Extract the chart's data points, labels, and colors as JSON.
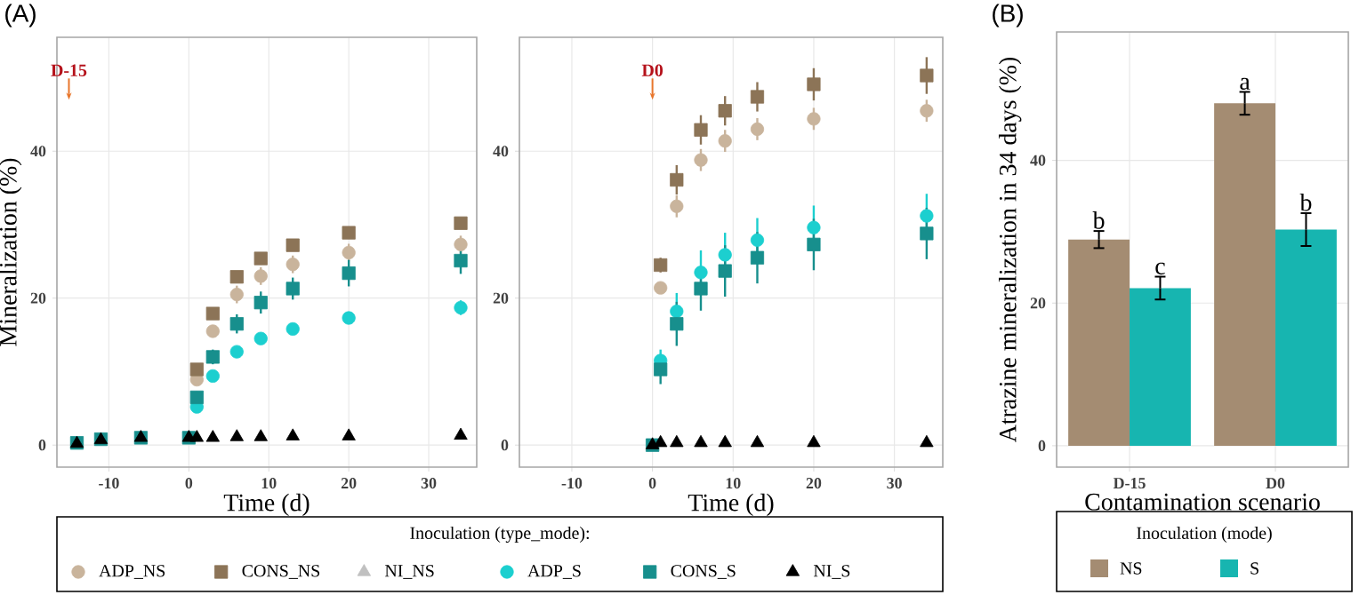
{
  "chart_data": [
    {
      "type": "scatter",
      "title": "(A)",
      "xlabel": "Time (d)",
      "ylabel": "Mineralization (%)",
      "legend_title": "Inoculation (type_mode):",
      "legend": "bottom",
      "grid": true,
      "xlim": [
        -16.5,
        36
      ],
      "xticks": [
        -10,
        0,
        10,
        20,
        30
      ],
      "ylim": [
        -3,
        55.5
      ],
      "yticks": [
        0,
        20,
        40
      ],
      "annotations": [
        {
          "text": "D-15",
          "x": -15,
          "y": 47
        }
      ],
      "series": [
        {
          "name": "ADP_NS",
          "color": "#c9b49c",
          "marker": "circle",
          "x": [
            1,
            3,
            6,
            9,
            13,
            20,
            34
          ],
          "values": [
            8.9,
            15.5,
            20.5,
            23.0,
            24.6,
            26.2,
            27.3
          ],
          "errors": [
            0.5,
            0.8,
            1.2,
            1.2,
            1.2,
            1.2,
            1.2
          ]
        },
        {
          "name": "CONS_NS",
          "color": "#8c7457",
          "marker": "square",
          "x": [
            1,
            3,
            6,
            9,
            13,
            20,
            34
          ],
          "values": [
            10.3,
            17.9,
            22.9,
            25.4,
            27.2,
            28.9,
            30.2
          ]
        },
        {
          "name": "NI_NS",
          "color": "#c0c0c0",
          "marker": "triangle"
        },
        {
          "name": "ADP_S",
          "color": "#1ccfcf",
          "marker": "circle",
          "x": [
            1,
            3,
            6,
            9,
            13,
            20,
            34
          ],
          "values": [
            5.2,
            9.4,
            12.7,
            14.5,
            15.8,
            17.3,
            18.7
          ],
          "errors": [
            null,
            null,
            null,
            null,
            null,
            null,
            1.0
          ]
        },
        {
          "name": "CONS_S",
          "color": "#178f8d",
          "marker": "square",
          "x": [
            -14,
            -11,
            -6,
            0,
            1,
            3,
            6,
            9,
            13,
            20,
            34
          ],
          "values": [
            0.3,
            0.8,
            1.0,
            1.0,
            6.5,
            12.0,
            16.5,
            19.4,
            21.3,
            23.4,
            25.1
          ],
          "errors": [
            null,
            null,
            null,
            null,
            0.8,
            1.0,
            1.3,
            1.5,
            1.5,
            1.8,
            1.8
          ]
        },
        {
          "name": "NI_S",
          "color": "#000000",
          "marker": "triangle",
          "x": [
            -14,
            -11,
            -6,
            0,
            1,
            3,
            6,
            9,
            13,
            20,
            34
          ],
          "values": [
            0.2,
            0.7,
            1.0,
            1.0,
            1.0,
            1.0,
            1.1,
            1.1,
            1.2,
            1.2,
            1.3
          ]
        }
      ]
    },
    {
      "type": "scatter",
      "xlabel": "Time (d)",
      "grid": true,
      "xlim": [
        -16.5,
        36
      ],
      "xticks": [
        -10,
        0,
        10,
        20,
        30
      ],
      "ylim": [
        -3,
        55.5
      ],
      "yticks": [
        0,
        20,
        40
      ],
      "annotations": [
        {
          "text": "D0",
          "x": 0,
          "y": 47
        }
      ],
      "series": [
        {
          "color": "#c9b49c",
          "marker": "circle",
          "x": [
            1,
            3,
            6,
            9,
            13,
            20,
            34
          ],
          "values": [
            21.4,
            32.5,
            38.8,
            41.4,
            43.0,
            44.4,
            45.5
          ],
          "errors": [
            null,
            1.5,
            1.5,
            1.5,
            1.5,
            1.5,
            1.5
          ]
        },
        {
          "color": "#8c7457",
          "marker": "square",
          "x": [
            1,
            3,
            6,
            9,
            13,
            20,
            34
          ],
          "values": [
            24.5,
            36.1,
            42.9,
            45.5,
            47.4,
            49.1,
            50.3
          ],
          "errors": [
            1,
            2,
            2,
            2,
            2,
            2.2,
            2.5
          ]
        },
        {
          "color": "#1ccfcf",
          "marker": "circle",
          "x": [
            1,
            3,
            6,
            9,
            13,
            20,
            34
          ],
          "values": [
            11.5,
            18.2,
            23.5,
            25.9,
            27.9,
            29.6,
            31.2
          ],
          "errors": [
            1.5,
            2.5,
            3,
            3,
            3,
            3,
            3
          ]
        },
        {
          "color": "#178f8d",
          "marker": "square",
          "x": [
            0,
            1,
            3,
            6,
            9,
            13,
            20,
            34
          ],
          "values": [
            0,
            10.3,
            16.5,
            21.3,
            23.7,
            25.5,
            27.3,
            28.8
          ],
          "errors": [
            null,
            2,
            3,
            3,
            3.5,
            3.5,
            3.5,
            3.5
          ]
        },
        {
          "color": "#000000",
          "marker": "triangle",
          "x": [
            0,
            1,
            3,
            6,
            9,
            13,
            20,
            34
          ],
          "values": [
            0,
            0.3,
            0.3,
            0.3,
            0.3,
            0.3,
            0.3,
            0.3
          ]
        }
      ]
    },
    {
      "type": "bar",
      "title": "(B)",
      "xlabel": "Contamination scenario",
      "ylabel": "Atrazine mineralization in 34 days (%)",
      "legend_title": "Inoculation (mode)",
      "legend": "bottom",
      "grid": true,
      "categories": [
        "D-15",
        "D0"
      ],
      "ylim": [
        -3,
        58
      ],
      "yticks": [
        0,
        20,
        40
      ],
      "annotations": [
        {
          "text": "b",
          "x": "D-15",
          "y": 28.9
        },
        {
          "text": "c",
          "x": "D-15",
          "y": 22.1
        },
        {
          "text": "a",
          "x": "D0",
          "y": 48.0
        },
        {
          "text": "b",
          "x": "D0",
          "y": 30.3
        }
      ],
      "series": [
        {
          "name": "NS",
          "color": "#a48c72",
          "values": [
            28.9,
            48.0
          ],
          "errors": [
            1.2,
            1.6
          ]
        },
        {
          "name": "S",
          "color": "#17b5b0",
          "values": [
            22.1,
            30.3
          ],
          "errors": [
            1.6,
            2.3
          ]
        }
      ]
    }
  ]
}
